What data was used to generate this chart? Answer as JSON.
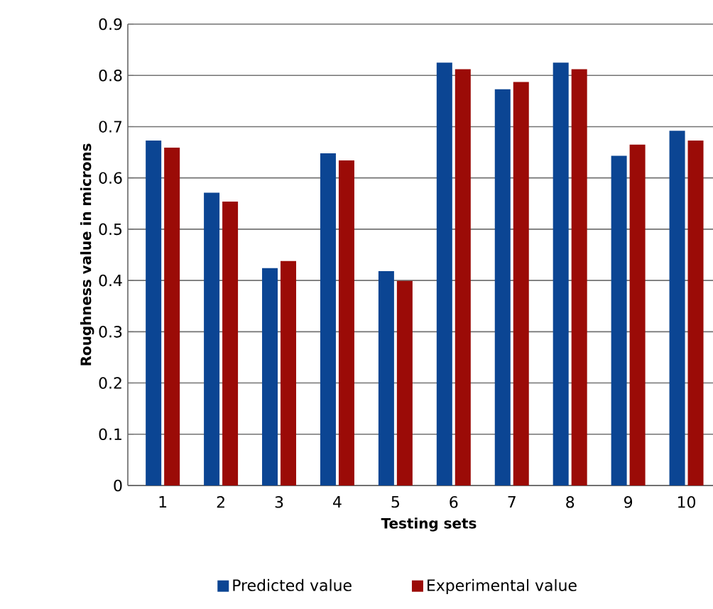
{
  "chart_data": {
    "type": "bar",
    "xlabel": "Testing sets",
    "ylabel": "Roughness value in microns",
    "categories": [
      "1",
      "2",
      "3",
      "4",
      "5",
      "6",
      "7",
      "8",
      "9",
      "10"
    ],
    "series": [
      {
        "name": "Predicted value",
        "color": "#0b4593",
        "values": [
          0.673,
          0.571,
          0.424,
          0.648,
          0.418,
          0.825,
          0.773,
          0.825,
          0.643,
          0.692
        ]
      },
      {
        "name": "Experimental value",
        "color": "#9b0b07",
        "values": [
          0.659,
          0.554,
          0.438,
          0.634,
          0.399,
          0.812,
          0.787,
          0.812,
          0.665,
          0.673
        ]
      }
    ],
    "ylim": [
      0,
      0.9
    ],
    "yticks": [
      0,
      0.1,
      0.2,
      0.3,
      0.4,
      0.5,
      0.6,
      0.7,
      0.8,
      0.9
    ],
    "grid": "y",
    "legend": "bottom"
  }
}
